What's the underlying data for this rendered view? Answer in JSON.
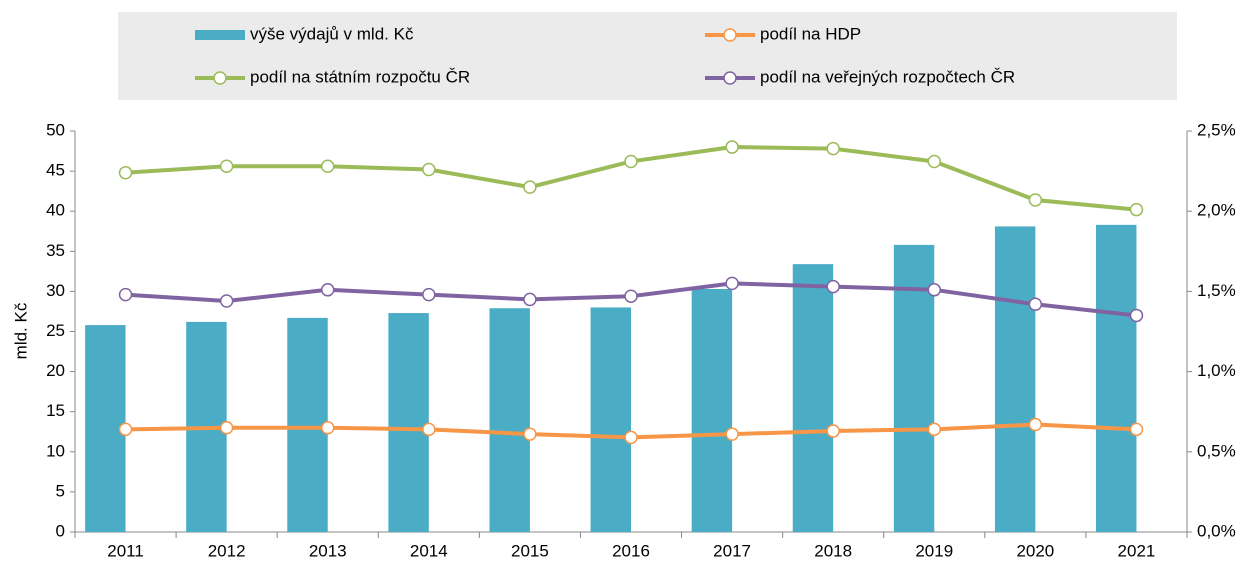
{
  "chart_data": {
    "type": "bar-line",
    "y_label": "mld. Kč",
    "categories": [
      "2011",
      "2012",
      "2013",
      "2014",
      "2015",
      "2016",
      "2017",
      "2018",
      "2019",
      "2020",
      "2021"
    ],
    "series": [
      {
        "name": "výše výdajů v mld. Kč",
        "type": "bar",
        "color": "#4bacc6",
        "values": [
          25.8,
          26.2,
          26.7,
          27.3,
          27.9,
          28.0,
          30.3,
          33.4,
          35.8,
          38.1,
          38.3
        ]
      },
      {
        "name": "podíl na HDP",
        "type": "line",
        "axis": "y2",
        "color": "#f79646",
        "values": [
          0.64,
          0.65,
          0.65,
          0.64,
          0.61,
          0.59,
          0.61,
          0.63,
          0.64,
          0.67,
          0.64
        ]
      },
      {
        "name": "podíl na státním rozpočtu ČR",
        "type": "line",
        "axis": "y2",
        "color": "#9bbb59",
        "values": [
          2.24,
          2.28,
          2.28,
          2.26,
          2.15,
          2.31,
          2.4,
          2.39,
          2.31,
          2.07,
          2.01
        ]
      },
      {
        "name": "podíl na veřejných rozpočtech ČR",
        "type": "line",
        "axis": "y2",
        "color": "#8064a2",
        "values": [
          1.48,
          1.44,
          1.51,
          1.48,
          1.45,
          1.47,
          1.55,
          1.53,
          1.51,
          1.42,
          1.35
        ]
      }
    ],
    "ylim": [
      0,
      50
    ],
    "yticks": [
      0,
      5,
      10,
      15,
      20,
      25,
      30,
      35,
      40,
      45,
      50
    ],
    "y2lim": [
      0,
      2.5
    ],
    "y2ticks": [
      {
        "value": 0,
        "label": "0,0%"
      },
      {
        "value": 0.5,
        "label": "0,5%"
      },
      {
        "value": 1,
        "label": "1,0%"
      },
      {
        "value": 1.5,
        "label": "1,5%"
      },
      {
        "value": 2,
        "label": "2,0%"
      },
      {
        "value": 2.5,
        "label": "2,5%"
      }
    ],
    "legend": "top"
  }
}
